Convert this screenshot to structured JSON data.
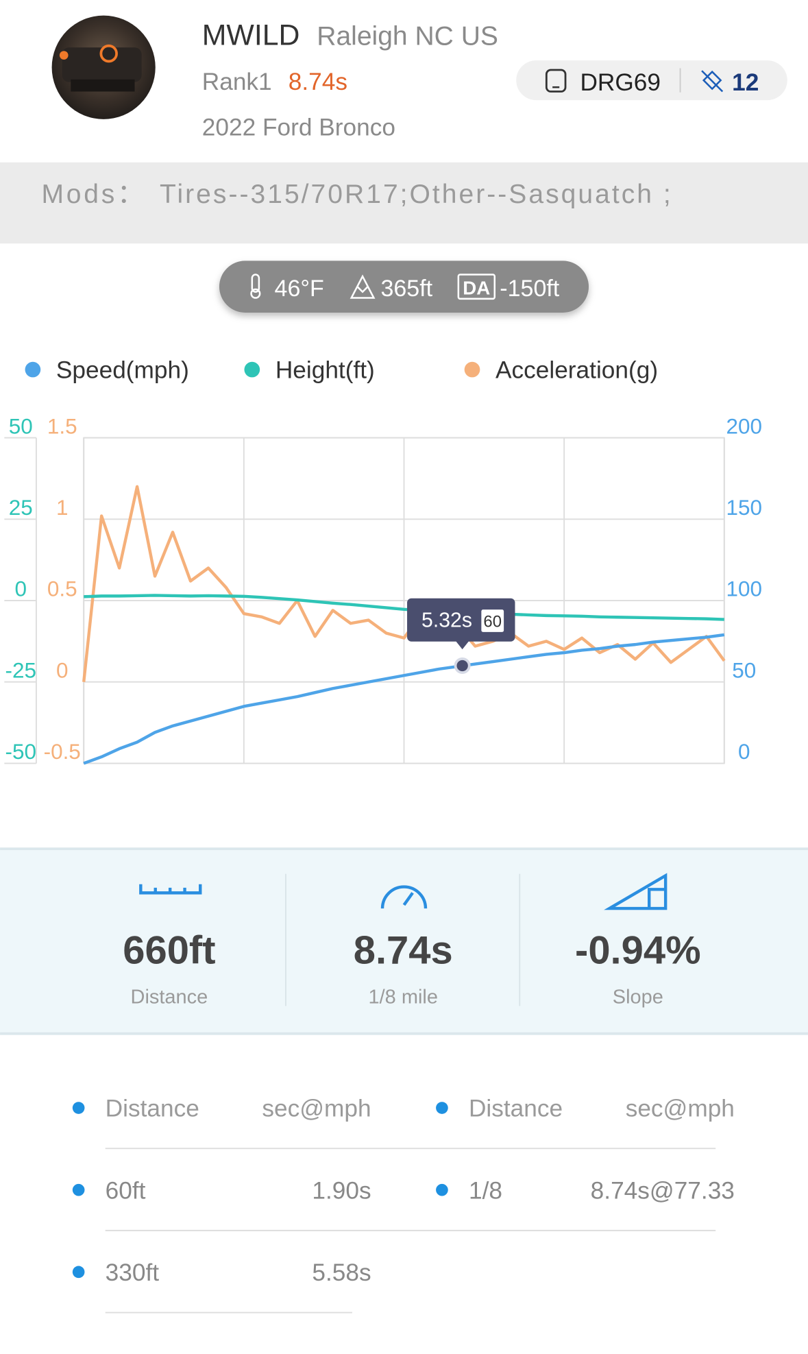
{
  "header": {
    "name": "MWILD",
    "location": "Raleigh NC US",
    "rank": "Rank1",
    "best_time": "8.74s",
    "vehicle": "2022 Ford Bronco",
    "device": "DRG69",
    "satellites": "12"
  },
  "mods": {
    "label": "Mods：",
    "text": "Tires--315/70R17;Other--Sasquatch ;"
  },
  "conditions": {
    "temperature": "46°F",
    "altitude": "365ft",
    "da_badge": "DA",
    "density_altitude": "-150ft"
  },
  "chart_data": {
    "type": "line",
    "x": [
      0,
      0.25,
      0.5,
      0.75,
      1,
      1.25,
      1.5,
      1.75,
      2,
      2.25,
      2.5,
      2.75,
      3,
      3.25,
      3.5,
      3.75,
      4,
      4.25,
      4.5,
      4.75,
      5,
      5.25,
      5.5,
      5.75,
      6,
      6.25,
      6.5,
      6.75,
      7,
      7.25,
      7.5,
      7.75,
      8,
      8.25,
      8.5,
      8.75,
      9
    ],
    "xlim": [
      0,
      9
    ],
    "xticks": [
      0,
      2.25,
      4.5,
      6.75,
      9
    ],
    "ylim": [
      -50,
      50
    ],
    "yticks": [
      50,
      25,
      0,
      -25,
      -50
    ],
    "y2lim": [
      0,
      200
    ],
    "y2ticks": [
      200,
      150,
      100,
      50,
      0
    ],
    "y3lim": [
      -0.5,
      1.5
    ],
    "y3ticks": [
      1.5,
      1,
      0.5,
      0,
      -0.5
    ],
    "grid": true,
    "series": [
      {
        "name": "Speed(mph)",
        "color": "#4ea4e8",
        "axis": "y2",
        "values": [
          0,
          4,
          9,
          13,
          19,
          23,
          26,
          29,
          32,
          35,
          37,
          39,
          41,
          43.5,
          46,
          48,
          50,
          52,
          54,
          56,
          58,
          59.5,
          61,
          62.5,
          64,
          65.5,
          67,
          68,
          69.5,
          70.5,
          72,
          73,
          74.5,
          75.5,
          76.5,
          77.5,
          79
        ]
      },
      {
        "name": "Height(ft)",
        "color": "#2ec4b6",
        "axis": "y",
        "values": [
          1.2,
          1.4,
          1.4,
          1.5,
          1.6,
          1.5,
          1.4,
          1.5,
          1.4,
          1.3,
          1.0,
          0.6,
          0.2,
          -0.3,
          -0.8,
          -1.2,
          -1.7,
          -2.2,
          -2.7,
          -3.0,
          -3.3,
          -3.6,
          -3.8,
          -4.0,
          -4.2,
          -4.4,
          -4.6,
          -4.7,
          -4.8,
          -5.0,
          -5.1,
          -5.2,
          -5.3,
          -5.4,
          -5.5,
          -5.6,
          -5.8
        ]
      },
      {
        "name": "Acceleration(g)",
        "color": "#f5b07a",
        "axis": "y3",
        "values": [
          0,
          1.02,
          0.7,
          1.2,
          0.65,
          0.92,
          0.62,
          0.7,
          0.58,
          0.42,
          0.4,
          0.36,
          0.5,
          0.28,
          0.44,
          0.36,
          0.38,
          0.3,
          0.27,
          0.42,
          0.3,
          0.35,
          0.22,
          0.25,
          0.3,
          0.22,
          0.25,
          0.2,
          0.27,
          0.18,
          0.23,
          0.14,
          0.24,
          0.12,
          0.2,
          0.28,
          0.13
        ]
      }
    ],
    "tooltip": {
      "x": 5.32,
      "x_label": "5.32s",
      "value": 60
    }
  },
  "stats": [
    {
      "value": "660ft",
      "label": "Distance"
    },
    {
      "value": "8.74s",
      "label": "1/8 mile"
    },
    {
      "value": "-0.94%",
      "label": "Slope"
    }
  ],
  "splits": {
    "header": [
      "Distance",
      "sec@mph",
      "Distance",
      "sec@mph"
    ],
    "rows": [
      [
        "60ft",
        "1.90s",
        "1/8",
        "8.74s@77.33"
      ],
      [
        "330ft",
        "5.58s"
      ]
    ]
  }
}
